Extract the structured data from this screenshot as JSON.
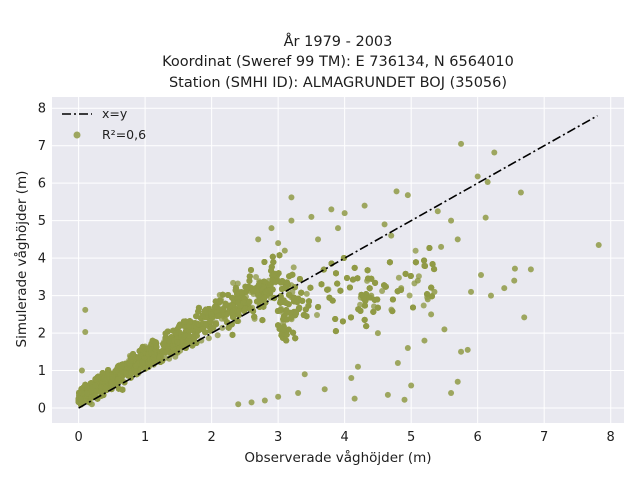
{
  "chart_data": {
    "type": "scatter",
    "title_lines": [
      "År 1979 - 2003",
      "Koordinat (Sweref 99 TM): E 736134, N 6564010",
      "Station (SMHI ID): ALMAGRUNDET BOJ (35056)"
    ],
    "xlabel": "Observerade våghöjder (m)",
    "ylabel": "Simulerade våghöjder (m)",
    "xlim": [
      -0.4,
      8.2
    ],
    "ylim": [
      -0.4,
      8.3
    ],
    "x_ticks": [
      0,
      1,
      2,
      3,
      4,
      5,
      6,
      7,
      8
    ],
    "y_ticks": [
      0,
      1,
      2,
      3,
      4,
      5,
      6,
      7,
      8
    ],
    "grid": true,
    "legend_position": "top-left",
    "colors": {
      "background": "#e9e9f0",
      "grid": "#ffffff",
      "scatter": "#8f9a45",
      "line": "#000000"
    },
    "series": [
      {
        "name": "x=y",
        "kind": "line",
        "style": "dashdot",
        "x": [
          0,
          7.8
        ],
        "y": [
          0,
          7.8
        ]
      },
      {
        "name": "R²=0,6",
        "kind": "scatter",
        "x": [
          5.75,
          6.25,
          6.65,
          7.82,
          6.0,
          6.15,
          6.12,
          6.56,
          6.8,
          6.7,
          6.55,
          6.05,
          5.9,
          4.95,
          4.78,
          5.85,
          4.9,
          3.2,
          0.1,
          0.1,
          0.05,
          0.2,
          3.8,
          4.3,
          5.4,
          5.6,
          5.45,
          5.7,
          4.6,
          4.0,
          3.5,
          4.85,
          5.1,
          5.3,
          4.5,
          4.2,
          5.0,
          5.6,
          5.7,
          5.75,
          5.2,
          5.5,
          4.4,
          3.6,
          3.9,
          4.7,
          6.2,
          6.4,
          2.8,
          3.0,
          2.6,
          2.4,
          3.3,
          3.7,
          4.1,
          4.15,
          4.65,
          4.8,
          5.25,
          5.35,
          4.95,
          3.4,
          3.0,
          2.9,
          3.2,
          3.1,
          2.7
        ],
        "y": [
          7.05,
          6.82,
          5.75,
          4.35,
          6.18,
          6.03,
          5.08,
          3.72,
          3.7,
          2.42,
          3.4,
          3.55,
          3.1,
          5.68,
          5.78,
          1.55,
          0.22,
          5.62,
          2.62,
          2.03,
          1.0,
          0.1,
          5.3,
          5.4,
          5.25,
          5.0,
          4.3,
          4.5,
          4.9,
          5.2,
          5.1,
          3.2,
          3.4,
          2.5,
          2.0,
          1.1,
          0.6,
          0.4,
          0.7,
          1.5,
          1.8,
          2.1,
          3.0,
          4.5,
          4.8,
          4.6,
          3.0,
          3.2,
          0.2,
          0.3,
          0.15,
          0.1,
          0.4,
          0.5,
          0.8,
          0.25,
          0.35,
          1.2,
          2.9,
          3.1,
          1.6,
          0.9,
          4.4,
          4.8,
          5.0,
          4.2,
          4.5
        ]
      }
    ]
  }
}
